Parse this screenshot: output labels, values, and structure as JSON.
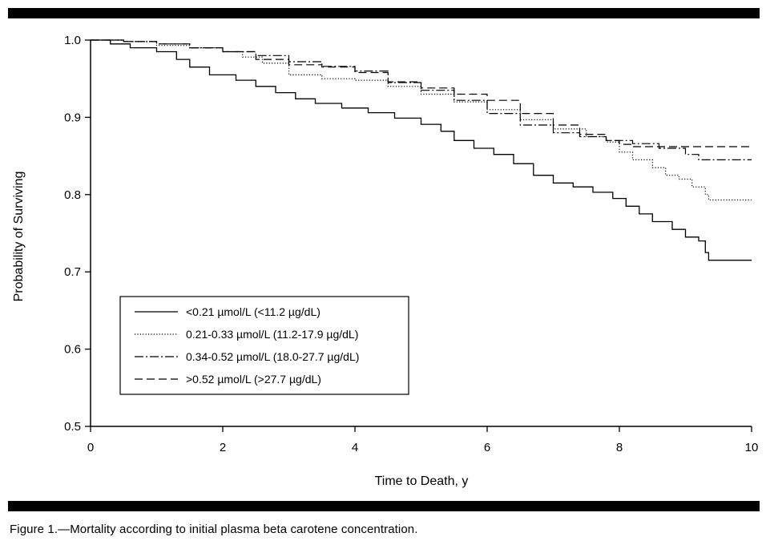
{
  "figure": {
    "caption": "Figure 1.—Mortality according to initial plasma beta carotene concentration."
  },
  "chart_data": {
    "type": "line",
    "title": "",
    "xlabel": "Time to Death, y",
    "ylabel": "Probability of Surviving",
    "xlim": [
      0,
      10
    ],
    "ylim": [
      0.5,
      1.0
    ],
    "x_ticks": [
      0,
      2,
      4,
      6,
      8,
      10
    ],
    "x_tick_labels": [
      "0",
      "2",
      "4",
      "6",
      "8",
      "10"
    ],
    "y_ticks": [
      0.5,
      0.6,
      0.7,
      0.8,
      0.9,
      1.0
    ],
    "y_tick_labels": [
      "0.5",
      "0.6",
      "0.7",
      "0.8",
      "0.9",
      "1.0"
    ],
    "grid": false,
    "legend_position": "lower-left",
    "series": [
      {
        "name": "<0.21 µmol/L (<11.2 µg/dL)",
        "line_style": "solid",
        "points": [
          [
            0,
            1.0
          ],
          [
            0.3,
            0.995
          ],
          [
            0.6,
            0.99
          ],
          [
            1.0,
            0.985
          ],
          [
            1.3,
            0.975
          ],
          [
            1.5,
            0.965
          ],
          [
            1.8,
            0.955
          ],
          [
            2.2,
            0.948
          ],
          [
            2.5,
            0.94
          ],
          [
            2.8,
            0.932
          ],
          [
            3.1,
            0.924
          ],
          [
            3.4,
            0.918
          ],
          [
            3.8,
            0.912
          ],
          [
            4.2,
            0.906
          ],
          [
            4.6,
            0.899
          ],
          [
            5.0,
            0.891
          ],
          [
            5.3,
            0.882
          ],
          [
            5.5,
            0.87
          ],
          [
            5.8,
            0.86
          ],
          [
            6.1,
            0.852
          ],
          [
            6.4,
            0.84
          ],
          [
            6.7,
            0.825
          ],
          [
            7.0,
            0.815
          ],
          [
            7.3,
            0.81
          ],
          [
            7.6,
            0.803
          ],
          [
            7.9,
            0.795
          ],
          [
            8.1,
            0.785
          ],
          [
            8.3,
            0.775
          ],
          [
            8.5,
            0.765
          ],
          [
            8.8,
            0.755
          ],
          [
            9.0,
            0.745
          ],
          [
            9.2,
            0.74
          ],
          [
            9.3,
            0.725
          ],
          [
            9.35,
            0.715
          ],
          [
            10.0,
            0.715
          ]
        ]
      },
      {
        "name": "0.21-0.33 µmol/L (11.2-17.9 µg/dL)",
        "line_style": "dotted",
        "points": [
          [
            0,
            1.0
          ],
          [
            0.5,
            0.998
          ],
          [
            1.0,
            0.993
          ],
          [
            1.5,
            0.99
          ],
          [
            2.0,
            0.985
          ],
          [
            2.3,
            0.978
          ],
          [
            2.6,
            0.97
          ],
          [
            3.0,
            0.955
          ],
          [
            3.5,
            0.95
          ],
          [
            4.0,
            0.948
          ],
          [
            4.5,
            0.94
          ],
          [
            5.0,
            0.93
          ],
          [
            5.5,
            0.92
          ],
          [
            6.0,
            0.91
          ],
          [
            6.5,
            0.897
          ],
          [
            7.0,
            0.885
          ],
          [
            7.5,
            0.875
          ],
          [
            7.8,
            0.868
          ],
          [
            8.0,
            0.855
          ],
          [
            8.2,
            0.845
          ],
          [
            8.5,
            0.835
          ],
          [
            8.7,
            0.825
          ],
          [
            8.9,
            0.82
          ],
          [
            9.1,
            0.81
          ],
          [
            9.3,
            0.8
          ],
          [
            9.35,
            0.793
          ],
          [
            10.0,
            0.793
          ]
        ]
      },
      {
        "name": "0.34-0.52 µmol/L (18.0-27.7 µg/dL)",
        "line_style": "dashdot",
        "points": [
          [
            0,
            1.0
          ],
          [
            0.5,
            0.998
          ],
          [
            1.0,
            0.995
          ],
          [
            1.5,
            0.99
          ],
          [
            2.0,
            0.985
          ],
          [
            2.5,
            0.98
          ],
          [
            3.0,
            0.972
          ],
          [
            3.5,
            0.966
          ],
          [
            4.0,
            0.96
          ],
          [
            4.5,
            0.945
          ],
          [
            5.0,
            0.935
          ],
          [
            5.5,
            0.922
          ],
          [
            6.0,
            0.905
          ],
          [
            6.5,
            0.89
          ],
          [
            7.0,
            0.88
          ],
          [
            7.4,
            0.875
          ],
          [
            7.8,
            0.87
          ],
          [
            8.2,
            0.866
          ],
          [
            8.6,
            0.86
          ],
          [
            9.0,
            0.852
          ],
          [
            9.2,
            0.845
          ],
          [
            10.0,
            0.845
          ]
        ]
      },
      {
        "name": ">0.52 µmol/L (>27.7 µg/dL)",
        "line_style": "dashed",
        "points": [
          [
            0,
            1.0
          ],
          [
            0.5,
            0.998
          ],
          [
            1.0,
            0.995
          ],
          [
            1.5,
            0.99
          ],
          [
            2.0,
            0.985
          ],
          [
            2.5,
            0.975
          ],
          [
            3.0,
            0.968
          ],
          [
            3.5,
            0.965
          ],
          [
            4.0,
            0.958
          ],
          [
            4.5,
            0.946
          ],
          [
            5.0,
            0.938
          ],
          [
            5.5,
            0.93
          ],
          [
            6.0,
            0.922
          ],
          [
            6.5,
            0.905
          ],
          [
            7.0,
            0.89
          ],
          [
            7.4,
            0.878
          ],
          [
            7.8,
            0.87
          ],
          [
            8.0,
            0.865
          ],
          [
            8.2,
            0.862
          ],
          [
            8.6,
            0.862
          ],
          [
            9.0,
            0.862
          ],
          [
            10.0,
            0.862
          ]
        ]
      }
    ]
  }
}
